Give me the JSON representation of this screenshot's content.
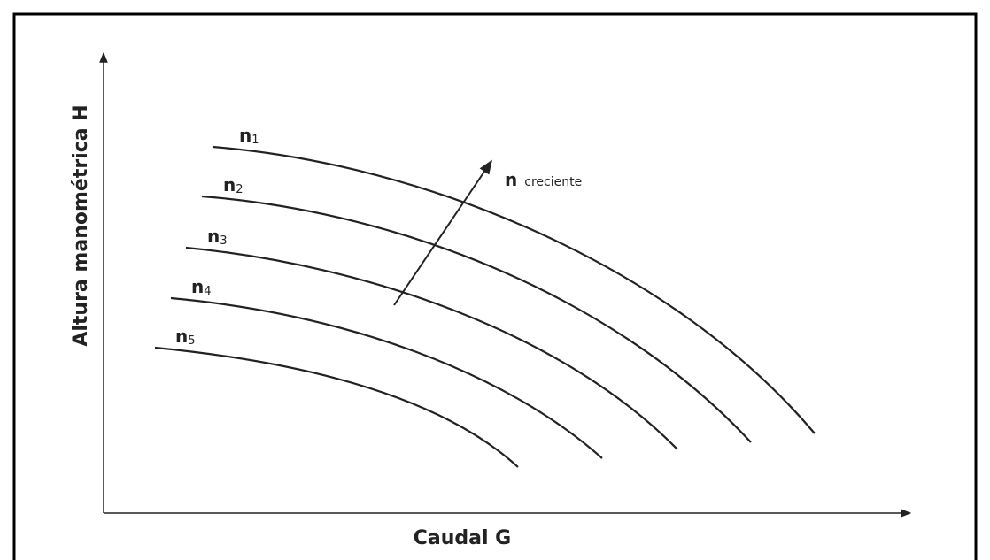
{
  "axes": {
    "x_label": "Caudal G",
    "y_label": "Altura manométrica H"
  },
  "curves": [
    {
      "label": "n",
      "subscript": "1"
    },
    {
      "label": "n",
      "subscript": "2"
    },
    {
      "label": "n",
      "subscript": "3"
    },
    {
      "label": "n",
      "subscript": "4"
    },
    {
      "label": "n",
      "subscript": "5"
    }
  ],
  "arrow_label": {
    "main": "n",
    "text": "creciente"
  }
}
